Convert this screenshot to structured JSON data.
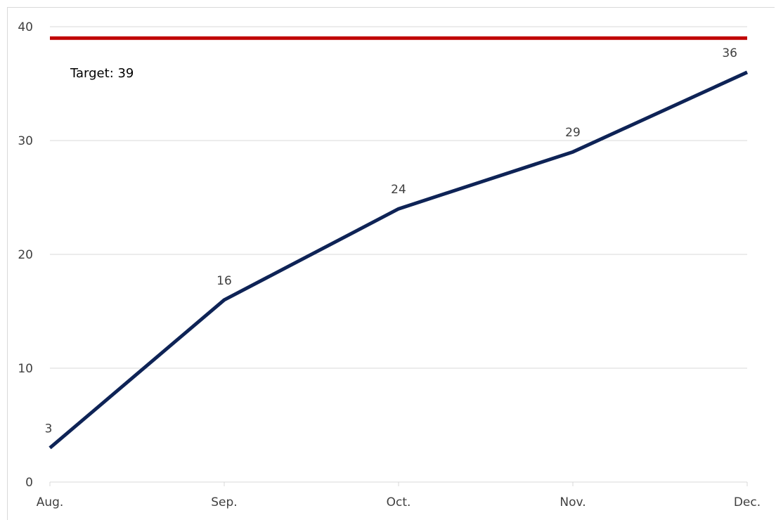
{
  "chart_data": {
    "type": "line",
    "title": "",
    "xlabel": "",
    "ylabel": "",
    "categories": [
      "Aug.",
      "Sep.",
      "Oct.",
      "Nov.",
      "Dec."
    ],
    "series": [
      {
        "values": [
          3,
          16,
          24,
          29,
          36
        ],
        "color": "#0e2356"
      }
    ],
    "target": {
      "value": 39,
      "label": "Target: 39",
      "color": "#c00000"
    },
    "ylim": [
      0,
      40
    ],
    "yticks": [
      0,
      10,
      20,
      30,
      40
    ],
    "grid": true,
    "legend": "none"
  }
}
